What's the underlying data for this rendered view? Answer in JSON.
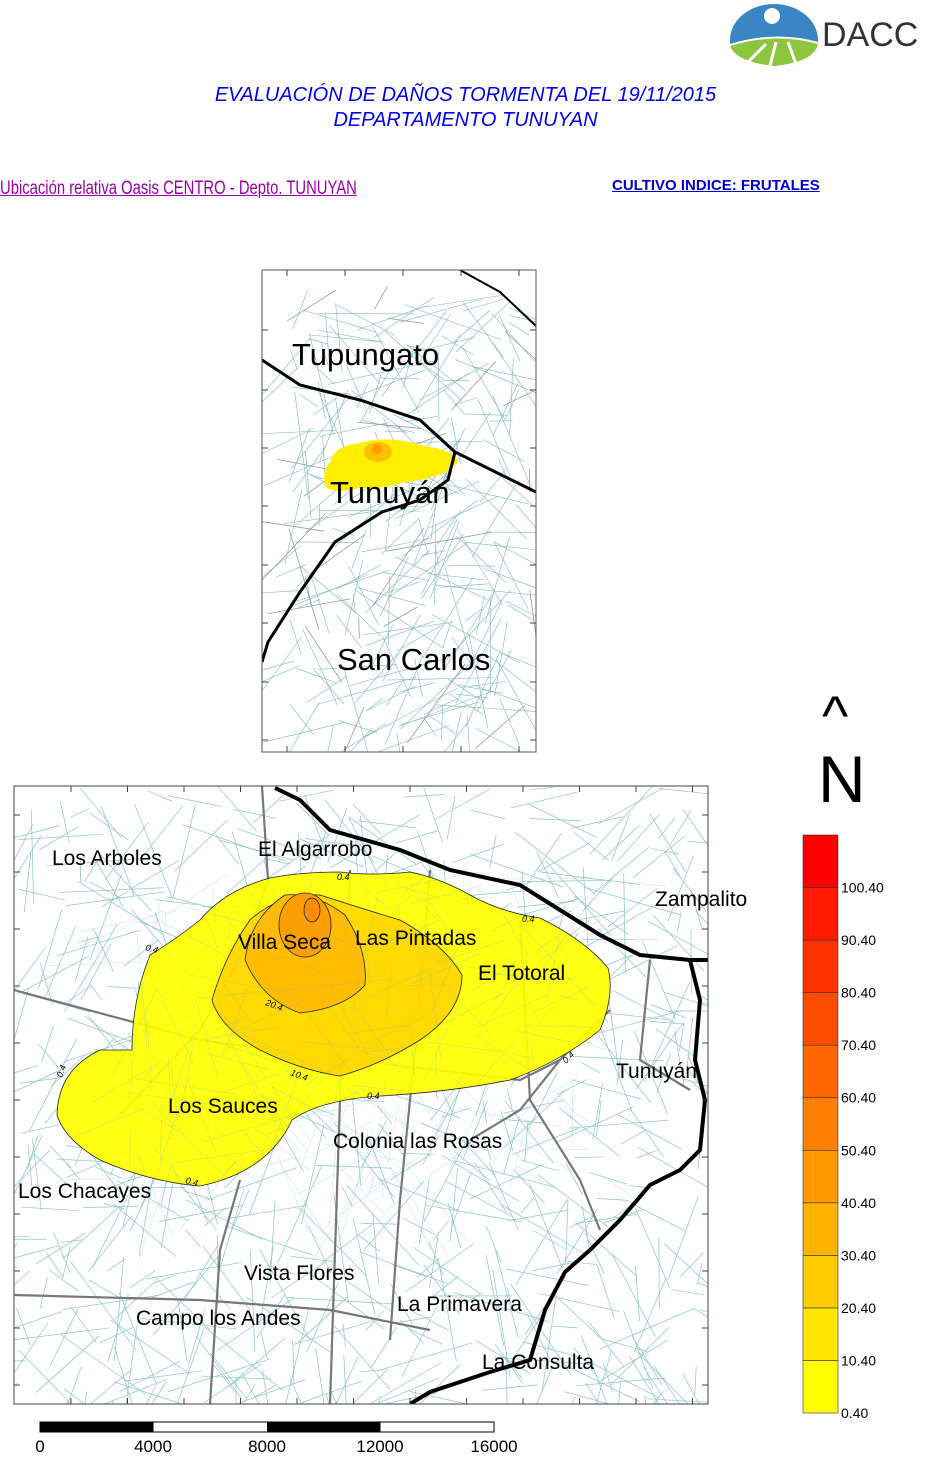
{
  "header": {
    "logo_text": "DACC",
    "title_line1": "EVALUACIÓN DE DAÑOS TORMENTA DEL 19/11/2015",
    "title_line2": "DEPARTAMENTO TUNUYAN",
    "location_label": "Ubicación relativa Oasis CENTRO - Depto. TUNUYAN",
    "crop_label": "CULTIVO INDICE: FRUTALES"
  },
  "inset_map": {
    "labels": [
      "Tupungato",
      "Tunuyán",
      "San Carlos"
    ]
  },
  "main_map": {
    "place_labels": [
      "Los Arboles",
      "El Algarrobo",
      "Zampalito",
      "Villa Seca",
      "Las Pintadas",
      "El Totoral",
      "Tunuyán",
      "Los Sauces",
      "Colonia las Rosas",
      "Los Chacayes",
      "Vista Flores",
      "Campo los Andes",
      "La Primavera",
      "La Consulta"
    ],
    "contour_labels": [
      "0.4",
      "0.4",
      "0.4",
      "0.4",
      "0.4",
      "0.4",
      "0.4",
      "10.4",
      "20.4"
    ],
    "north_arrow": {
      "symbol": "^",
      "letter": "N"
    }
  },
  "scale_bar": {
    "ticks": [
      "0",
      "4000",
      "8000",
      "12000",
      "16000"
    ]
  },
  "legend": {
    "labels": [
      "0.40",
      "10.40",
      "20.40",
      "30.40",
      "40.40",
      "50.40",
      "60.40",
      "70.40",
      "80.40",
      "90.40",
      "100.40"
    ],
    "colors": [
      "#ffff00",
      "#ffe600",
      "#ffcc00",
      "#ffb300",
      "#ff9900",
      "#ff8000",
      "#ff6600",
      "#ff4d00",
      "#ff3300",
      "#ff1a00",
      "#ff0000"
    ]
  }
}
